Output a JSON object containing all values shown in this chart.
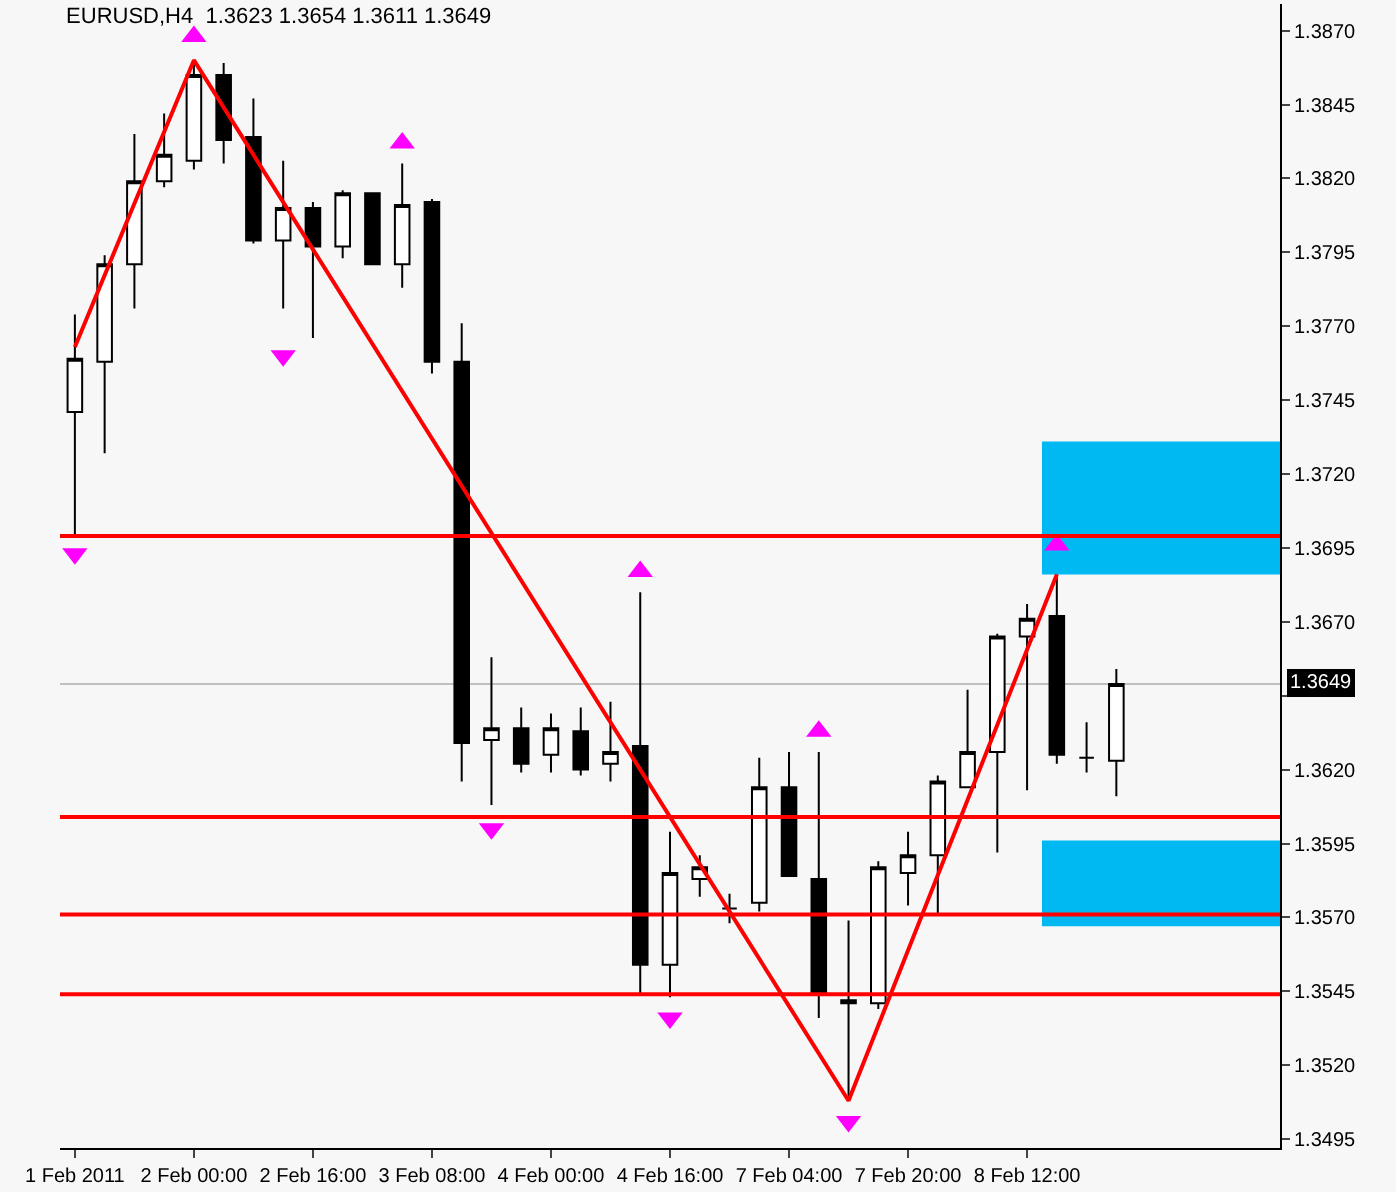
{
  "chart_data": {
    "type": "candlestick",
    "title": "EURUSD,H4  1.3623 1.3654 1.3611 1.3649",
    "categories": [
      "1 Feb 2011",
      null,
      null,
      null,
      "2 Feb 00:00",
      null,
      null,
      null,
      "2 Feb 16:00",
      null,
      null,
      null,
      "3 Feb 08:00",
      null,
      null,
      null,
      "4 Feb 00:00",
      null,
      null,
      null,
      "4 Feb 16:00",
      null,
      null,
      null,
      "7 Feb 04:00",
      null,
      null,
      null,
      "7 Feb 20:00",
      null,
      null,
      null,
      "8 Feb 12:00",
      null,
      null,
      null,
      null,
      null,
      null,
      null,
      null
    ],
    "ohlc": [
      [
        1.3741,
        1.3774,
        1.3699,
        1.3759
      ],
      [
        1.3758,
        1.3794,
        1.3727,
        1.3791
      ],
      [
        1.3791,
        1.3835,
        1.3776,
        1.3819
      ],
      [
        1.3819,
        1.3842,
        1.3817,
        1.3828
      ],
      [
        1.3826,
        1.386,
        1.3823,
        1.3855
      ],
      [
        1.3855,
        1.3859,
        1.3825,
        1.3833
      ],
      [
        1.3834,
        1.3847,
        1.3798,
        1.3799
      ],
      [
        1.3799,
        1.3826,
        1.3776,
        1.381
      ],
      [
        1.381,
        1.3812,
        1.3766,
        1.3797
      ],
      [
        1.3797,
        1.3816,
        1.3793,
        1.3815
      ],
      [
        1.3815,
        1.3815,
        1.3791,
        1.3791
      ],
      [
        1.3791,
        1.3825,
        1.3783,
        1.3811
      ],
      [
        1.3812,
        1.3813,
        1.3754,
        1.3758
      ],
      [
        1.3758,
        1.3771,
        1.3616,
        1.3629
      ],
      [
        1.363,
        1.3658,
        1.3608,
        1.3634
      ],
      [
        1.3634,
        1.3641,
        1.3619,
        1.3622
      ],
      [
        1.3625,
        1.3639,
        1.3619,
        1.3634
      ],
      [
        1.3633,
        1.3641,
        1.3618,
        1.362
      ],
      [
        1.3622,
        1.3643,
        1.3616,
        1.3626
      ],
      [
        1.3628,
        1.368,
        1.3544,
        1.3554
      ],
      [
        1.3554,
        1.3599,
        1.3543,
        1.3585
      ],
      [
        1.3583,
        1.3591,
        1.3577,
        1.3587
      ],
      [
        1.3573,
        1.3578,
        1.3568,
        1.3573
      ],
      [
        1.3575,
        1.3624,
        1.3572,
        1.3614
      ],
      [
        1.3614,
        1.3626,
        1.3584,
        1.3584
      ],
      [
        1.3583,
        1.3626,
        1.3536,
        1.3544
      ],
      [
        1.3542,
        1.3569,
        1.3508,
        1.3541
      ],
      [
        1.3541,
        1.3589,
        1.3539,
        1.3587
      ],
      [
        1.3585,
        1.3599,
        1.3574,
        1.3591
      ],
      [
        1.3591,
        1.3618,
        1.3571,
        1.3616
      ],
      [
        1.3614,
        1.3647,
        1.3614,
        1.3626
      ],
      [
        1.3626,
        1.3666,
        1.3592,
        1.3665
      ],
      [
        1.3665,
        1.3676,
        1.3613,
        1.3671
      ],
      [
        1.3672,
        1.3686,
        1.3622,
        1.3625
      ],
      [
        1.3624,
        1.3636,
        1.3619,
        1.3624
      ],
      [
        1.3623,
        1.3654,
        1.3611,
        1.3649
      ],
      null,
      null,
      null,
      null,
      null
    ],
    "series": [
      {
        "type": "line",
        "color": "#ff0000",
        "line_style": "solid",
        "values": [
          1.3763,
          null,
          null,
          null,
          1.386,
          null,
          null,
          null,
          null,
          null,
          null,
          null,
          null,
          null,
          null,
          null,
          null,
          null,
          null,
          null,
          null,
          null,
          null,
          null,
          null,
          null,
          1.3508,
          null,
          null,
          null,
          null,
          null,
          null,
          1.3686,
          null,
          null,
          null,
          null,
          null,
          null,
          null
        ]
      },
      {
        "type": "scatter",
        "color": "#ff00ff",
        "marker": "triangle",
        "values": [
          null,
          null,
          null,
          null,
          1.3868,
          null,
          null,
          null,
          null,
          null,
          null,
          1.3832,
          null,
          null,
          null,
          null,
          null,
          null,
          null,
          1.3687,
          null,
          null,
          null,
          null,
          null,
          1.3633,
          null,
          null,
          null,
          null,
          null,
          null,
          null,
          1.3696,
          null,
          null,
          null,
          null,
          null,
          null,
          null
        ]
      },
      {
        "type": "scatter",
        "color": "#ff00ff",
        "marker": "triangle",
        "values": [
          1.3693,
          null,
          null,
          null,
          null,
          null,
          null,
          1.376,
          null,
          null,
          null,
          null,
          null,
          null,
          1.36,
          null,
          null,
          null,
          null,
          null,
          1.3536,
          null,
          null,
          null,
          null,
          null,
          1.3501,
          null,
          null,
          null,
          null,
          null,
          null,
          null,
          null,
          null,
          null,
          null,
          null,
          null,
          null
        ]
      }
    ],
    "ref_lines": [
      {
        "axis": "y",
        "value": 1.3699,
        "color": "#ff0000",
        "line_style": "solid"
      },
      {
        "axis": "y",
        "value": 1.3604,
        "color": "#ff0000",
        "line_style": "solid"
      },
      {
        "axis": "y",
        "value": 1.3571,
        "color": "#ff0000",
        "line_style": "solid"
      },
      {
        "axis": "y",
        "value": 1.3544,
        "color": "#ff0000",
        "line_style": "solid"
      },
      {
        "axis": "y",
        "value": 1.3649,
        "label": "1.3649",
        "color": "#c0c0c0",
        "line_style": "solid"
      }
    ],
    "bands": [
      {
        "axis": "y",
        "from": 1.3686,
        "to": 1.3731,
        "color": "#00b9f2"
      },
      {
        "axis": "y",
        "from": 1.3567,
        "to": 1.3596,
        "color": "#00b9f2"
      }
    ],
    "ylim": [
      1.3492,
      1.3879
    ],
    "yticks": [
      {
        "value": 1.3495,
        "label": "1.3495"
      },
      {
        "value": 1.352,
        "label": "1.3520"
      },
      {
        "value": 1.3545,
        "label": "1.3545"
      },
      {
        "value": 1.357,
        "label": "1.3570"
      },
      {
        "value": 1.3595,
        "label": "1.3595"
      },
      {
        "value": 1.362,
        "label": "1.3620"
      },
      {
        "value": 1.3645,
        "label": null
      },
      {
        "value": 1.367,
        "label": "1.3670"
      },
      {
        "value": 1.3695,
        "label": "1.3695"
      },
      {
        "value": 1.372,
        "label": "1.3720"
      },
      {
        "value": 1.3745,
        "label": "1.3745"
      },
      {
        "value": 1.377,
        "label": "1.3770"
      },
      {
        "value": 1.3795,
        "label": "1.3795"
      },
      {
        "value": 1.382,
        "label": "1.3820"
      },
      {
        "value": 1.3845,
        "label": "1.3845"
      },
      {
        "value": 1.387,
        "label": "1.3870"
      }
    ],
    "grid": false
  }
}
